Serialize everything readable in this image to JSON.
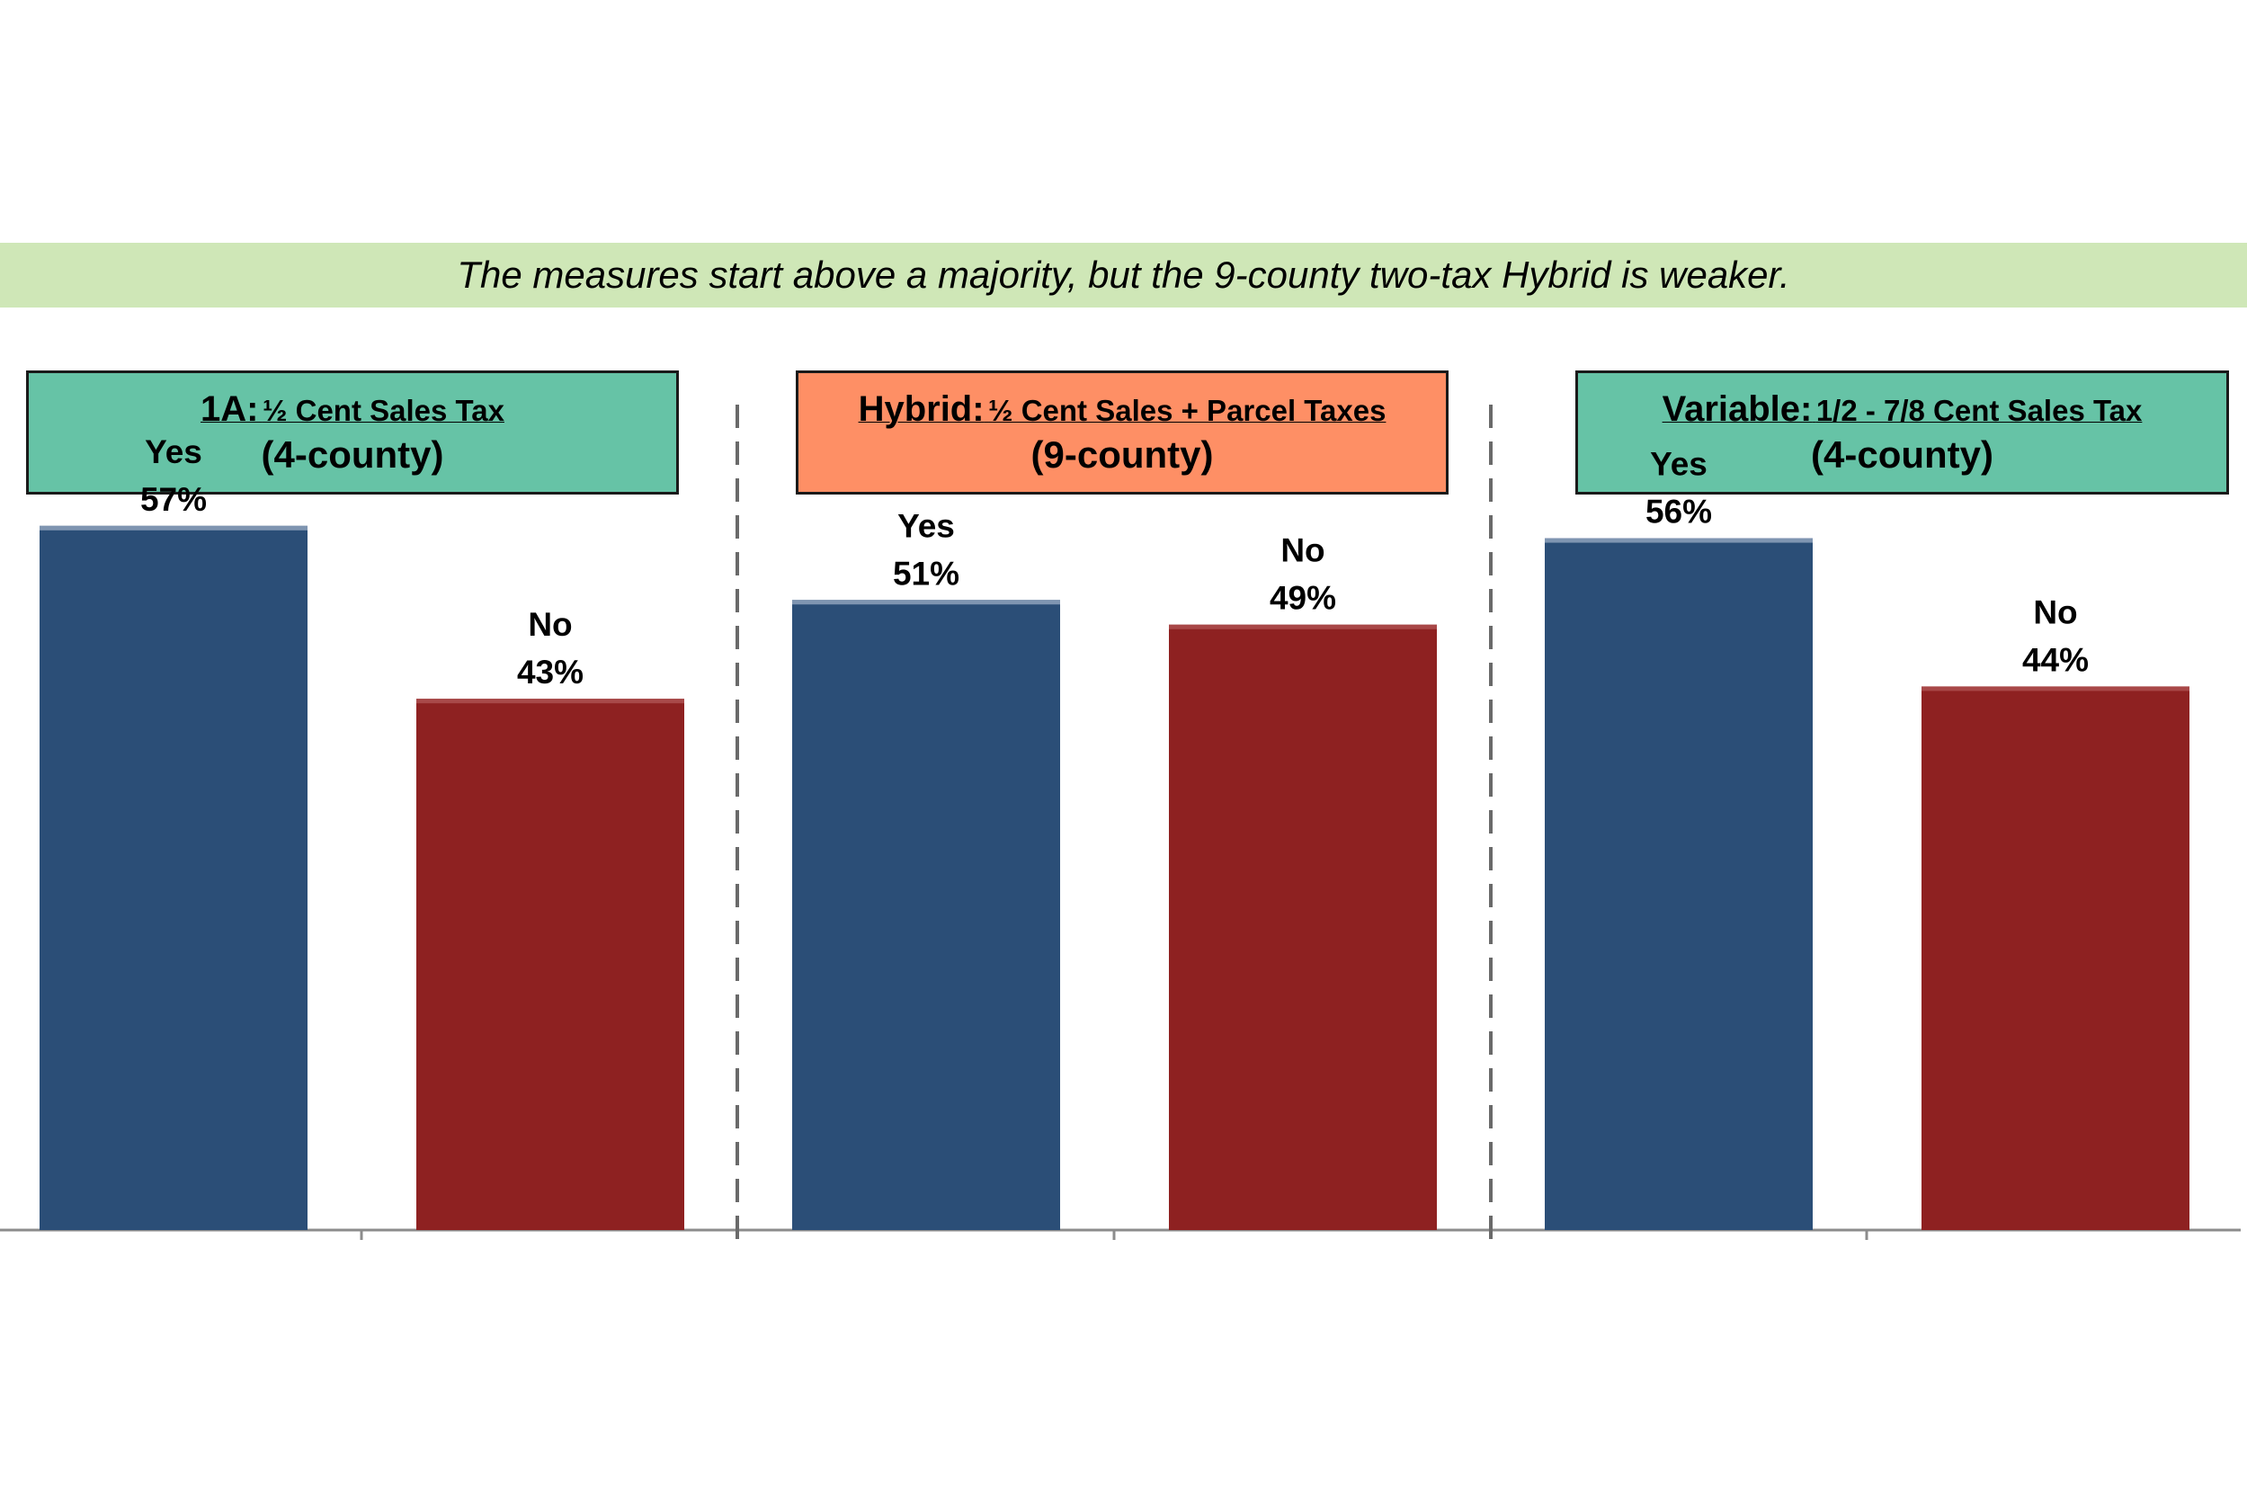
{
  "banner": {
    "text": "The measures start above a majority, but the 9-county two-tax Hybrid is weaker."
  },
  "colors": {
    "banner_bg": "#cfe7b7",
    "yes": "#2b4e77",
    "yes_top": "#7f95b1",
    "no": "#8e2121",
    "box_green": "#66c3a6",
    "box_orange": "#fe8f65",
    "divider": "#6a6a6a",
    "axis": "#8c8c8c"
  },
  "panels": [
    {
      "title_main": "1A:",
      "title_sub": "½ Cent Sales Tax",
      "subtitle": "(4-county)",
      "box_color": "#66c3a6"
    },
    {
      "title_main": "Hybrid:",
      "title_sub": "½ Cent Sales + Parcel Taxes",
      "subtitle": "(9-county)",
      "box_color": "#fe8f65"
    },
    {
      "title_main": "Variable:",
      "title_sub": "1/2 - 7/8 Cent Sales Tax",
      "subtitle": "(4-county)",
      "box_color": "#66c3a6"
    }
  ],
  "chart_data": {
    "type": "bar",
    "categories": [
      "Yes",
      "No",
      "Yes",
      "No",
      "Yes",
      "No"
    ],
    "values": [
      57,
      43,
      51,
      49,
      56,
      44
    ],
    "data_labels": [
      "57%",
      "43%",
      "51%",
      "49%",
      "56%",
      "44%"
    ],
    "groups": [
      "1A",
      "Hybrid",
      "Variable"
    ],
    "ylim": [
      0,
      100
    ],
    "grid": false
  }
}
